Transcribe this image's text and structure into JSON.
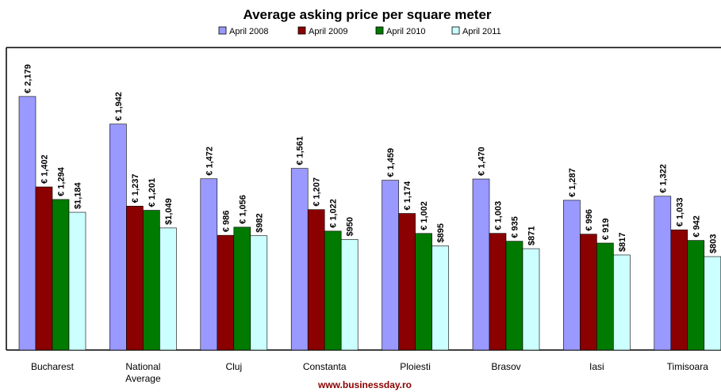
{
  "chart_data": {
    "type": "bar",
    "title": "Average asking price per square meter",
    "categories": [
      [
        "Bucharest"
      ],
      [
        "National",
        "Average"
      ],
      [
        "Cluj"
      ],
      [
        "Constanta"
      ],
      [
        "Ploiesti"
      ],
      [
        "Brasov"
      ],
      [
        "Iasi"
      ],
      [
        "Timisoara"
      ]
    ],
    "series": [
      {
        "name": "April 2008",
        "color": "#9999ff",
        "values": [
          2179,
          1942,
          1472,
          1561,
          1459,
          1470,
          1287,
          1322
        ],
        "labels": [
          "€ 2,179",
          "€ 1,942",
          "€ 1,472",
          "€ 1,561",
          "€ 1,459",
          "€ 1,470",
          "€ 1,287",
          "€ 1,322"
        ]
      },
      {
        "name": "April 2009",
        "color": "#8b0000",
        "values": [
          1402,
          1237,
          986,
          1207,
          1174,
          1003,
          996,
          1033
        ],
        "labels": [
          "€ 1,402",
          "€ 1,237",
          "€ 986",
          "€ 1,207",
          "€ 1,174",
          "€ 1,003",
          "€ 996",
          "€ 1,033"
        ]
      },
      {
        "name": "April 2010",
        "color": "#007a00",
        "values": [
          1294,
          1201,
          1056,
          1022,
          1002,
          935,
          919,
          942
        ],
        "labels": [
          "€ 1,294",
          "€ 1,201",
          "€ 1,056",
          "€ 1,022",
          "€ 1,002",
          "€ 935",
          "€ 919",
          "€ 942"
        ]
      },
      {
        "name": "April 2011",
        "color": "#ccffff",
        "values": [
          1184,
          1049,
          982,
          950,
          895,
          871,
          817,
          803
        ],
        "labels": [
          "$1,184",
          "$1,049",
          "$982",
          "$950",
          "$895",
          "$871",
          "$817",
          "$803"
        ]
      }
    ],
    "ylim": [
      0,
      2600
    ],
    "grid": false,
    "legend_position": "top-center"
  },
  "footer": {
    "text": "www.businessday.ro",
    "color": "#8b0000"
  }
}
